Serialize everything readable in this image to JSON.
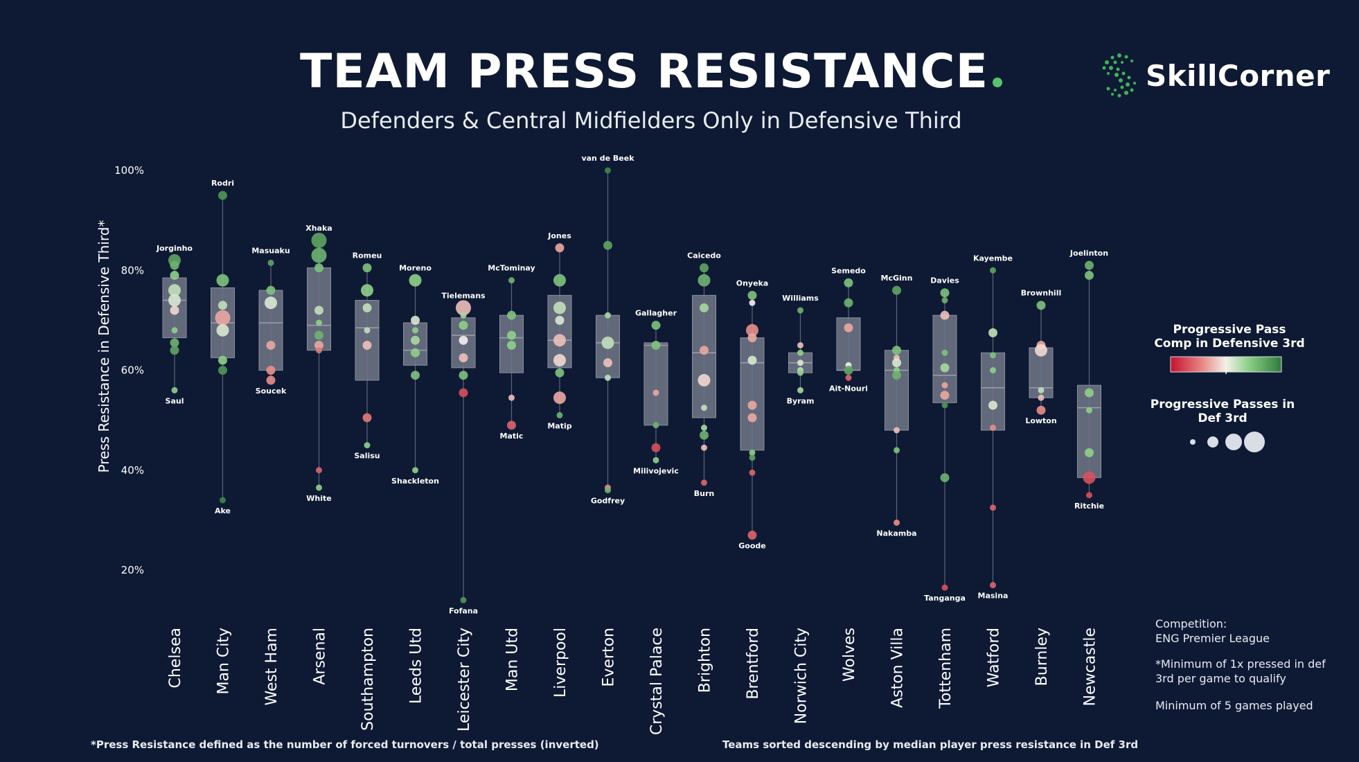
{
  "header": {
    "title": "TEAM PRESS RESISTANCE",
    "subtitle": "Defenders & Central Midfielders Only in Defensive Third",
    "logo": "SkillCorner"
  },
  "legend": {
    "color_title": "Progressive Pass Comp in Defensive 3rd",
    "size_title": "Progressive Passes in Def 3rd"
  },
  "notes": {
    "competition_label": "Competition:",
    "competition": "ENG Premier League",
    "min_pressed": "*Minimum of 1x pressed in def 3rd per game to qualify",
    "min_games": "Minimum of 5 games played"
  },
  "footnotes": {
    "left": "*Press Resistance defined as the number of forced turnovers / total presses (inverted)",
    "right": "Teams sorted descending by median player press resistance in Def 3rd"
  },
  "colors": {
    "background": "#0e1a33",
    "box": "#6c7283",
    "good": "#2e7a3c",
    "bad": "#d23a3a",
    "mid": "#f0b4a4"
  },
  "chart_data": {
    "type": "box",
    "ylabel": "Press Resistance in Defensive Third*",
    "ylim": [
      10,
      102
    ],
    "yticks": [
      20,
      40,
      60,
      80,
      100
    ],
    "ytick_labels": [
      "20%",
      "40%",
      "60%",
      "80%",
      "100%"
    ],
    "teams": [
      {
        "name": "Chelsea",
        "whisker": [
          56,
          82
        ],
        "box": [
          66.5,
          74,
          78.5
        ],
        "top": "Jorginho",
        "bottom": "Saul",
        "points": [
          [
            82,
            0.85,
            3
          ],
          [
            81,
            0.8,
            2
          ],
          [
            79,
            0.7,
            2
          ],
          [
            76,
            0.6,
            3
          ],
          [
            74,
            0.55,
            3
          ],
          [
            72,
            0.45,
            2
          ],
          [
            68,
            0.7,
            1
          ],
          [
            65.5,
            0.8,
            2
          ],
          [
            64,
            0.85,
            2
          ],
          [
            56,
            0.7,
            1
          ]
        ]
      },
      {
        "name": "Man City",
        "whisker": [
          34,
          95
        ],
        "box": [
          62.5,
          69.5,
          76.5
        ],
        "top": "Rodri",
        "bottom": "Ake",
        "points": [
          [
            95,
            0.9,
            2
          ],
          [
            78,
            0.75,
            3
          ],
          [
            73,
            0.6,
            2
          ],
          [
            70.5,
            0.35,
            4
          ],
          [
            68,
            0.55,
            3
          ],
          [
            62,
            0.7,
            2
          ],
          [
            60,
            0.9,
            2
          ],
          [
            34,
            0.95,
            1
          ]
        ]
      },
      {
        "name": "West Ham",
        "whisker": [
          58,
          81.5
        ],
        "box": [
          60,
          69.5,
          76
        ],
        "top": "Masuaku",
        "bottom": "Soucek",
        "points": [
          [
            81.5,
            0.85,
            1
          ],
          [
            76,
            0.75,
            2
          ],
          [
            73.5,
            0.55,
            3
          ],
          [
            65,
            0.35,
            2
          ],
          [
            60,
            0.3,
            2
          ],
          [
            58,
            0.3,
            2
          ]
        ]
      },
      {
        "name": "Arsenal",
        "whisker": [
          36.5,
          86
        ],
        "box": [
          64,
          69,
          80.5
        ],
        "top": "Xhaka",
        "bottom": "White",
        "points": [
          [
            86,
            0.85,
            4
          ],
          [
            83,
            0.8,
            4
          ],
          [
            80.5,
            0.75,
            2
          ],
          [
            72,
            0.6,
            2
          ],
          [
            69.5,
            0.7,
            1
          ],
          [
            67,
            0.8,
            2
          ],
          [
            65,
            0.35,
            2
          ],
          [
            64,
            0.25,
            1
          ],
          [
            40,
            0.2,
            1
          ],
          [
            36.5,
            0.7,
            1
          ]
        ]
      },
      {
        "name": "Southampton",
        "whisker": [
          45,
          80.5
        ],
        "box": [
          58,
          68.5,
          74
        ],
        "top": "Romeu",
        "bottom": "Salisu",
        "points": [
          [
            80.5,
            0.75,
            2
          ],
          [
            76,
            0.7,
            3
          ],
          [
            72.5,
            0.6,
            2
          ],
          [
            68,
            0.6,
            1
          ],
          [
            65,
            0.4,
            2
          ],
          [
            50.5,
            0.25,
            2
          ],
          [
            45,
            0.7,
            1
          ]
        ]
      },
      {
        "name": "Leeds Utd",
        "whisker": [
          40,
          78
        ],
        "box": [
          61,
          64,
          69.5
        ],
        "top": "Moreno",
        "bottom": "Shackleton",
        "points": [
          [
            78,
            0.7,
            3
          ],
          [
            70,
            0.55,
            2
          ],
          [
            68,
            0.7,
            1
          ],
          [
            66,
            0.65,
            2
          ],
          [
            63.5,
            0.7,
            2
          ],
          [
            59,
            0.75,
            2
          ],
          [
            40,
            0.7,
            1
          ]
        ]
      },
      {
        "name": "Leicester City",
        "whisker": [
          14,
          72.5
        ],
        "box": [
          60.5,
          67,
          70.5
        ],
        "top": "Tielemans",
        "bottom": "Fofana",
        "points": [
          [
            72.5,
            0.4,
            4
          ],
          [
            71,
            0.65,
            1
          ],
          [
            69,
            0.7,
            2
          ],
          [
            66,
            0.5,
            2
          ],
          [
            62.5,
            0.4,
            2
          ],
          [
            59,
            0.75,
            2
          ],
          [
            55.5,
            0.15,
            2
          ],
          [
            14,
            0.9,
            1
          ]
        ]
      },
      {
        "name": "Man Utd",
        "whisker": [
          49,
          78
        ],
        "box": [
          59.5,
          66.5,
          71
        ],
        "top": "McTominay",
        "bottom": "Matic",
        "points": [
          [
            78,
            0.8,
            1
          ],
          [
            71,
            0.75,
            2
          ],
          [
            67,
            0.7,
            2
          ],
          [
            65,
            0.7,
            2
          ],
          [
            54.5,
            0.4,
            1
          ],
          [
            49,
            0.2,
            2
          ]
        ]
      },
      {
        "name": "Liverpool",
        "whisker": [
          51,
          84.5
        ],
        "box": [
          60.5,
          66,
          75
        ],
        "top": "Jones",
        "bottom": "Matip",
        "points": [
          [
            84.5,
            0.35,
            2
          ],
          [
            78,
            0.75,
            3
          ],
          [
            72.5,
            0.6,
            3
          ],
          [
            70,
            0.55,
            2
          ],
          [
            66,
            0.4,
            3
          ],
          [
            62,
            0.45,
            3
          ],
          [
            59.5,
            0.75,
            2
          ],
          [
            54.5,
            0.35,
            3
          ],
          [
            51,
            0.8,
            1
          ]
        ]
      },
      {
        "name": "Everton",
        "whisker": [
          36,
          100
        ],
        "box": [
          58.5,
          65.5,
          71
        ],
        "top": "van de Beek",
        "bottom": "Godfrey",
        "points": [
          [
            100,
            0.95,
            1
          ],
          [
            85,
            0.85,
            2
          ],
          [
            71,
            0.65,
            1
          ],
          [
            65.5,
            0.6,
            3
          ],
          [
            61.5,
            0.4,
            2
          ],
          [
            58.5,
            0.6,
            1
          ],
          [
            36.5,
            0.3,
            1
          ],
          [
            36,
            0.8,
            1
          ]
        ]
      },
      {
        "name": "Crystal Palace",
        "whisker": [
          42,
          69
        ],
        "box": [
          49,
          65,
          65.5
        ],
        "top": "Gallagher",
        "bottom": "Milivojevic",
        "points": [
          [
            69,
            0.75,
            2
          ],
          [
            65,
            0.75,
            2
          ],
          [
            55.5,
            0.35,
            1
          ],
          [
            49,
            0.8,
            1
          ],
          [
            44.5,
            0.15,
            2
          ],
          [
            42,
            0.7,
            1
          ]
        ]
      },
      {
        "name": "Brighton",
        "whisker": [
          37.5,
          80.5
        ],
        "box": [
          50.5,
          63.5,
          75
        ],
        "top": "Caicedo",
        "bottom": "Burn",
        "points": [
          [
            80.5,
            0.85,
            2
          ],
          [
            78,
            0.8,
            3
          ],
          [
            72.5,
            0.65,
            2
          ],
          [
            64,
            0.35,
            2
          ],
          [
            58,
            0.45,
            3
          ],
          [
            52.5,
            0.6,
            1
          ],
          [
            48.5,
            0.65,
            1
          ],
          [
            47,
            0.8,
            2
          ],
          [
            44.5,
            0.4,
            1
          ],
          [
            37.5,
            0.2,
            1
          ]
        ]
      },
      {
        "name": "Brentford",
        "whisker": [
          27,
          75
        ],
        "box": [
          44,
          61.5,
          66.5
        ],
        "top": "Onyeka",
        "bottom": "Goode",
        "points": [
          [
            75,
            0.75,
            2
          ],
          [
            73.5,
            0.5,
            1
          ],
          [
            68,
            0.3,
            3
          ],
          [
            66.5,
            0.35,
            2
          ],
          [
            62,
            0.55,
            2
          ],
          [
            53,
            0.35,
            2
          ],
          [
            50.5,
            0.35,
            2
          ],
          [
            43.5,
            0.7,
            1
          ],
          [
            42.5,
            0.85,
            1
          ],
          [
            39.5,
            0.2,
            1
          ],
          [
            27,
            0.2,
            2
          ]
        ]
      },
      {
        "name": "Norwich City",
        "whisker": [
          56,
          72
        ],
        "box": [
          59.5,
          61.5,
          63.5
        ],
        "top": "Williams",
        "bottom": "Byram",
        "points": [
          [
            72,
            0.8,
            1
          ],
          [
            65,
            0.4,
            1
          ],
          [
            63.5,
            0.7,
            1
          ],
          [
            61.5,
            0.55,
            1
          ],
          [
            60,
            0.6,
            1
          ],
          [
            59.5,
            0.7,
            1
          ],
          [
            56,
            0.65,
            1
          ]
        ]
      },
      {
        "name": "Wolves",
        "whisker": [
          58.5,
          77.5
        ],
        "box": [
          60,
          60,
          70.5
        ],
        "top": "Semedo",
        "bottom": "Ait-Nouri",
        "points": [
          [
            77.5,
            0.75,
            2
          ],
          [
            73.5,
            0.8,
            2
          ],
          [
            68.5,
            0.35,
            2
          ],
          [
            61,
            0.5,
            1
          ],
          [
            60,
            0.85,
            2
          ],
          [
            58.5,
            0.2,
            1
          ]
        ]
      },
      {
        "name": "Aston Villa",
        "whisker": [
          29.5,
          76
        ],
        "box": [
          48,
          60,
          64
        ],
        "top": "McGinn",
        "bottom": "Nakamba",
        "points": [
          [
            76,
            0.85,
            2
          ],
          [
            64,
            0.75,
            2
          ],
          [
            62.5,
            0.4,
            1
          ],
          [
            61.5,
            0.55,
            2
          ],
          [
            60,
            0.7,
            1
          ],
          [
            59,
            0.8,
            2
          ],
          [
            48,
            0.4,
            1
          ],
          [
            44,
            0.75,
            1
          ],
          [
            29.5,
            0.3,
            1
          ]
        ]
      },
      {
        "name": "Tottenham",
        "whisker": [
          16.5,
          75.5
        ],
        "box": [
          53.5,
          59,
          71
        ],
        "top": "Davies",
        "bottom": "Tanganga",
        "points": [
          [
            75.5,
            0.75,
            2
          ],
          [
            74,
            0.8,
            1
          ],
          [
            71,
            0.4,
            2
          ],
          [
            63.5,
            0.75,
            1
          ],
          [
            60.5,
            0.65,
            2
          ],
          [
            57,
            0.35,
            1
          ],
          [
            55,
            0.35,
            2
          ],
          [
            53,
            0.9,
            1
          ],
          [
            38.5,
            0.8,
            2
          ],
          [
            16.5,
            0.15,
            1
          ]
        ]
      },
      {
        "name": "Watford",
        "whisker": [
          17,
          80
        ],
        "box": [
          48,
          56.5,
          63.5
        ],
        "top": "Kayembe",
        "bottom": "Masina",
        "points": [
          [
            80,
            0.85,
            1
          ],
          [
            67.5,
            0.6,
            2
          ],
          [
            63,
            0.75,
            1
          ],
          [
            60,
            0.7,
            1
          ],
          [
            53,
            0.55,
            2
          ],
          [
            48.5,
            0.3,
            1
          ],
          [
            32.5,
            0.2,
            1
          ],
          [
            17,
            0.2,
            1
          ]
        ]
      },
      {
        "name": "Burnley",
        "whisker": [
          52,
          73
        ],
        "box": [
          54.5,
          56.5,
          64.5
        ],
        "top": "Brownhill",
        "bottom": "Lowton",
        "points": [
          [
            73,
            0.75,
            2
          ],
          [
            65,
            0.35,
            2
          ],
          [
            64,
            0.45,
            3
          ],
          [
            56,
            0.6,
            1
          ],
          [
            54.5,
            0.4,
            1
          ],
          [
            52,
            0.3,
            2
          ]
        ]
      },
      {
        "name": "Newcastle",
        "whisker": [
          35,
          81
        ],
        "box": [
          38.5,
          52.5,
          57
        ],
        "top": "Joelinton",
        "bottom": "Ritchie",
        "points": [
          [
            81,
            0.8,
            2
          ],
          [
            79,
            0.75,
            2
          ],
          [
            55.5,
            0.7,
            2
          ],
          [
            52,
            0.7,
            1
          ],
          [
            43.5,
            0.7,
            2
          ],
          [
            38.5,
            0.15,
            3
          ],
          [
            35,
            0.15,
            1
          ]
        ]
      }
    ]
  }
}
